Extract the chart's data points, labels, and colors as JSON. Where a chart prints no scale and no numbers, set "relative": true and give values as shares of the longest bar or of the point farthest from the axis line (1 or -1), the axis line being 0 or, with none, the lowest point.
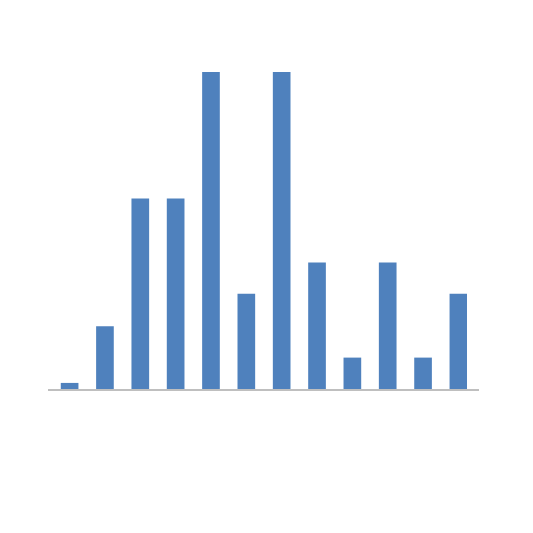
{
  "chart_data": {
    "type": "bar",
    "relative": true,
    "categories": [
      null,
      null,
      null,
      null,
      null,
      null,
      null,
      null,
      null,
      null,
      null,
      null
    ],
    "values": [
      0.02,
      0.2,
      0.6,
      0.6,
      1,
      0.3,
      1,
      0.4,
      0.1,
      0.4,
      0.1,
      0.3
    ],
    "color": "#4f81bd"
  }
}
